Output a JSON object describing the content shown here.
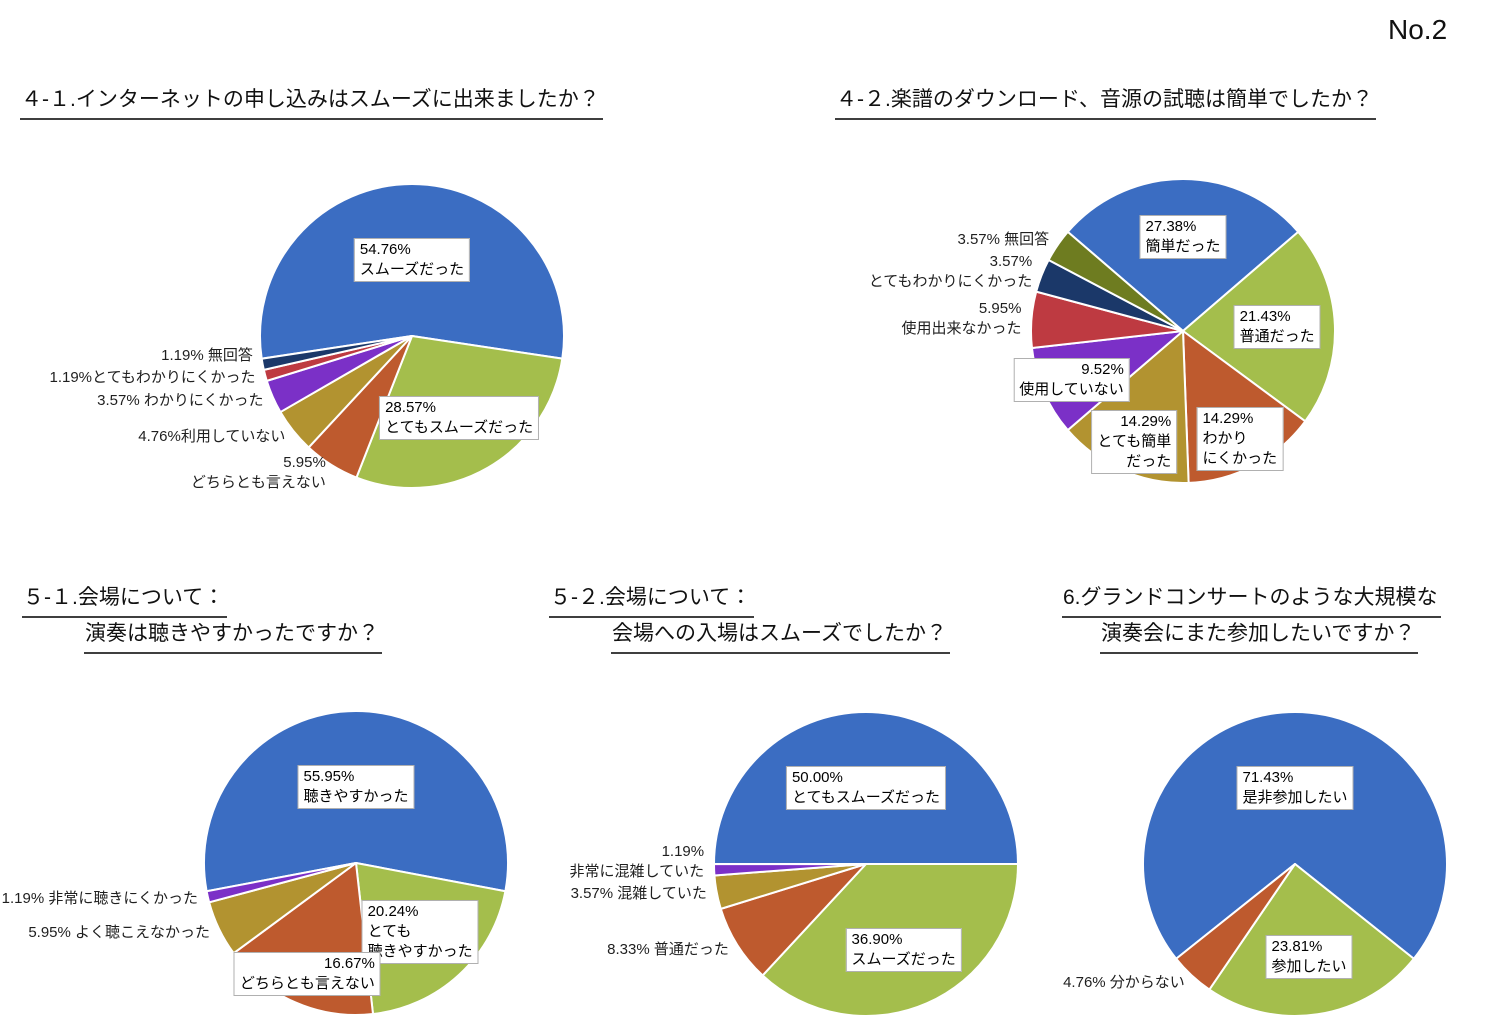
{
  "page": {
    "number_label": "No.2"
  },
  "styles": {
    "label_box_bg": "#ffffff",
    "label_box_border": "#b0b0b0",
    "palette": [
      "#3b6dc2",
      "#a4be4c",
      "#be5a2e",
      "#b29330",
      "#7b30c7",
      "#be3a41",
      "#1b3869",
      "#6e7c20"
    ]
  },
  "chart_data": [
    {
      "type": "pie",
      "question_no": "4-1",
      "title_lines": [
        "４-１.インターネットの申し込みはスムーズに出来ましたか？"
      ],
      "direction": "clockwise",
      "start": "first-slice-centered-at-top",
      "slices": [
        {
          "label": "スムーズだった",
          "value": 54.76,
          "color": "#3b6dc2",
          "placement": "inside",
          "label_lines": [
            "54.76%",
            "スムーズだった"
          ]
        },
        {
          "label": "とてもスムーズだった",
          "value": 28.57,
          "color": "#a4be4c",
          "placement": "inside",
          "label_lines": [
            "28.57%",
            "とてもスムーズだった"
          ]
        },
        {
          "label": "どちらとも言えない",
          "value": 5.95,
          "color": "#be5a2e",
          "placement": "outside",
          "label_lines": [
            "5.95%",
            "どちらとも言えない"
          ]
        },
        {
          "label": "利用していない",
          "value": 4.76,
          "color": "#b29330",
          "placement": "outside",
          "label_lines": [
            "4.76%利用していない"
          ]
        },
        {
          "label": "わかりにくかった",
          "value": 3.57,
          "color": "#7b30c7",
          "placement": "outside",
          "label_lines": [
            "3.57% わかりにくかった"
          ]
        },
        {
          "label": "とてもわかりにくかった",
          "value": 1.19,
          "color": "#be3a41",
          "placement": "outside",
          "label_lines": [
            "1.19%とてもわかりにくかった"
          ]
        },
        {
          "label": "無回答",
          "value": 1.19,
          "color": "#1b3869",
          "placement": "outside",
          "label_lines": [
            "1.19% 無回答"
          ]
        }
      ]
    },
    {
      "type": "pie",
      "question_no": "4-2",
      "title_lines": [
        "４-２.楽譜のダウンロード、音源の試聴は簡単でしたか？"
      ],
      "direction": "clockwise",
      "start": "first-slice-centered-at-top",
      "slices": [
        {
          "label": "簡単だった",
          "value": 27.38,
          "color": "#3b6dc2",
          "placement": "inside",
          "label_lines": [
            "27.38%",
            "簡単だった"
          ]
        },
        {
          "label": "普通だった",
          "value": 21.43,
          "color": "#a4be4c",
          "placement": "inside",
          "label_lines": [
            "21.43%",
            "普通だった"
          ]
        },
        {
          "label": "わかりにくかった",
          "value": 14.29,
          "color": "#be5a2e",
          "placement": "inside",
          "label_lines": [
            "14.29%",
            "わかり",
            "にくかった"
          ]
        },
        {
          "label": "とても簡単だった",
          "value": 14.29,
          "color": "#b29330",
          "placement": "inside",
          "label_lines": [
            "14.29%",
            "とても簡単",
            "だった"
          ]
        },
        {
          "label": "使用していない",
          "value": 9.52,
          "color": "#7b30c7",
          "placement": "inside",
          "label_lines": [
            "9.52%",
            "使用していない"
          ]
        },
        {
          "label": "使用出来なかった",
          "value": 5.95,
          "color": "#be3a41",
          "placement": "outside",
          "label_lines": [
            "5.95%",
            "使用出来なかった"
          ]
        },
        {
          "label": "とてもわかりにくかった",
          "value": 3.57,
          "color": "#1b3869",
          "placement": "outside",
          "label_lines": [
            "3.57%",
            "とてもわかりにくかった"
          ]
        },
        {
          "label": "無回答",
          "value": 3.57,
          "color": "#6e7c20",
          "placement": "outside",
          "label_lines": [
            "3.57% 無回答"
          ]
        }
      ]
    },
    {
      "type": "pie",
      "question_no": "5-1",
      "title_lines": [
        "５-１.会場について：",
        "演奏は聴きやすかったですか？"
      ],
      "direction": "clockwise",
      "start": "first-slice-centered-at-top",
      "slices": [
        {
          "label": "聴きやすかった",
          "value": 55.95,
          "color": "#3b6dc2",
          "placement": "inside",
          "label_lines": [
            "55.95%",
            "聴きやすかった"
          ]
        },
        {
          "label": "とても聴きやすかった",
          "value": 20.24,
          "color": "#a4be4c",
          "placement": "inside",
          "label_lines": [
            "20.24%",
            "とても",
            "聴きやすかった"
          ]
        },
        {
          "label": "どちらとも言えない",
          "value": 16.67,
          "color": "#be5a2e",
          "placement": "inside",
          "label_lines": [
            "16.67%",
            "どちらとも言えない"
          ]
        },
        {
          "label": "よく聴こえなかった",
          "value": 5.95,
          "color": "#b29330",
          "placement": "outside",
          "label_lines": [
            "5.95% よく聴こえなかった"
          ]
        },
        {
          "label": "非常に聴きにくかった",
          "value": 1.19,
          "color": "#7b30c7",
          "placement": "outside",
          "label_lines": [
            "1.19% 非常に聴きにくかった"
          ]
        }
      ]
    },
    {
      "type": "pie",
      "question_no": "5-2",
      "title_lines": [
        "５-２.会場について：",
        "会場への入場はスムーズでしたか？"
      ],
      "direction": "clockwise",
      "start": "first-slice-centered-at-top",
      "slices": [
        {
          "label": "とてもスムーズだった",
          "value": 50.0,
          "color": "#3b6dc2",
          "placement": "inside",
          "label_lines": [
            "50.00%",
            "とてもスムーズだった"
          ]
        },
        {
          "label": "スムーズだった",
          "value": 36.9,
          "color": "#a4be4c",
          "placement": "inside",
          "label_lines": [
            "36.90%",
            "スムーズだった"
          ]
        },
        {
          "label": "普通だった",
          "value": 8.33,
          "color": "#be5a2e",
          "placement": "outside",
          "label_lines": [
            "8.33% 普通だった"
          ]
        },
        {
          "label": "混雑していた",
          "value": 3.57,
          "color": "#b29330",
          "placement": "outside",
          "label_lines": [
            "3.57% 混雑していた"
          ]
        },
        {
          "label": "非常に混雑していた",
          "value": 1.19,
          "color": "#7b30c7",
          "placement": "outside",
          "label_lines": [
            "1.19%",
            "非常に混雑していた"
          ]
        }
      ]
    },
    {
      "type": "pie",
      "question_no": "6",
      "title_lines": [
        "6.グランドコンサートのような大規模な",
        "演奏会にまた参加したいですか？"
      ],
      "direction": "clockwise",
      "start": "first-slice-centered-at-top",
      "slices": [
        {
          "label": "是非参加したい",
          "value": 71.43,
          "color": "#3b6dc2",
          "placement": "inside",
          "label_lines": [
            "71.43%",
            "是非参加したい"
          ]
        },
        {
          "label": "参加したい",
          "value": 23.81,
          "color": "#a4be4c",
          "placement": "inside",
          "label_lines": [
            "23.81%",
            "参加したい"
          ]
        },
        {
          "label": "分からない",
          "value": 4.76,
          "color": "#be5a2e",
          "placement": "outside",
          "label_lines": [
            "4.76% 分からない"
          ]
        }
      ]
    }
  ]
}
